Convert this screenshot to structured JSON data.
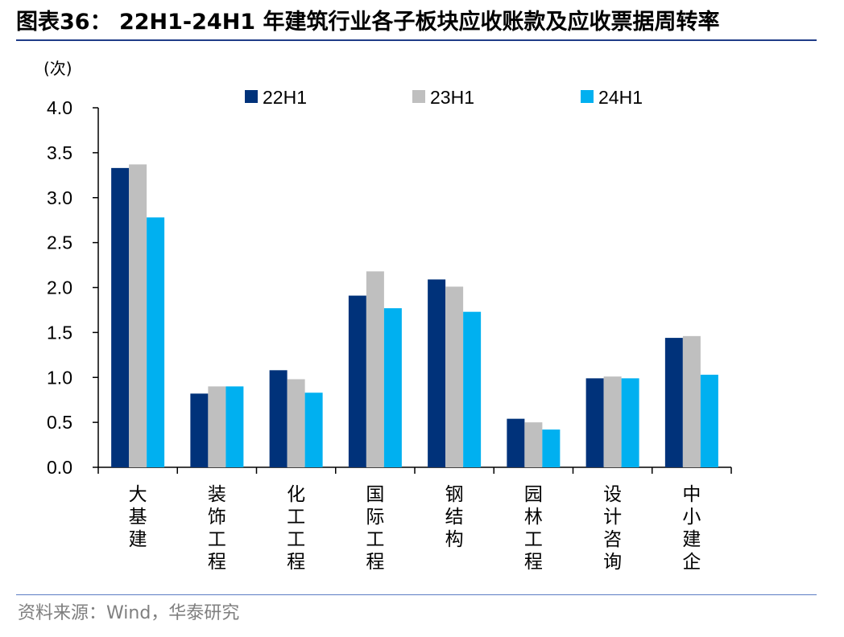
{
  "header": {
    "title": "图表36：  22H1-24H1 年建筑行业各子板块应收账款及应收票据周转率"
  },
  "footer": {
    "source": "资料来源：Wind，华泰研究"
  },
  "chart_data": {
    "type": "bar",
    "title": "",
    "xlabel": "",
    "ylabel": "(次)",
    "ylim": [
      0,
      4.0
    ],
    "yticks": [
      "0.0",
      "0.5",
      "1.0",
      "1.5",
      "2.0",
      "2.5",
      "3.0",
      "3.5",
      "4.0"
    ],
    "grid": false,
    "legend_position": "top",
    "categories": [
      "大基建",
      "装饰工程",
      "化工工程",
      "国际工程",
      "钢结构",
      "园林工程",
      "设计咨询",
      "中小建企"
    ],
    "series": [
      {
        "name": "22H1",
        "color": "#00327A",
        "values": [
          3.33,
          0.82,
          1.08,
          1.91,
          2.09,
          0.54,
          0.99,
          1.44
        ]
      },
      {
        "name": "23H1",
        "color": "#BFBFBF",
        "values": [
          3.37,
          0.9,
          0.98,
          2.18,
          2.01,
          0.5,
          1.01,
          1.46
        ]
      },
      {
        "name": "24H1",
        "color": "#00B0F0",
        "values": [
          2.78,
          0.9,
          0.83,
          1.77,
          1.73,
          0.42,
          0.99,
          1.03
        ]
      }
    ]
  }
}
